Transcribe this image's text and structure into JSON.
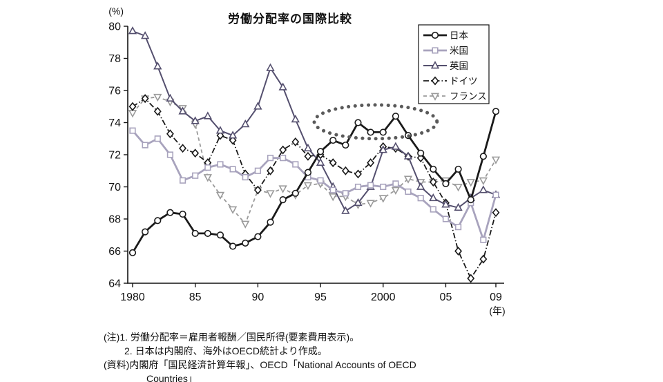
{
  "chart": {
    "title": "労働分配率の国際比較"
  },
  "notes": {
    "line1": "(注)1. 労働分配率＝雇用者報酬／国民所得(要素費用表示)。",
    "line2": "2. 日本は内閣府、海外はOECD統計より作成。",
    "line3": "(資料)内閣府「国民経済計算年報」、OECD「National Accounts of OECD",
    "line4": "Countries」"
  },
  "chart_data": {
    "type": "line",
    "title": "労働分配率の国際比較",
    "xlabel": "(年)",
    "ylabel": "(%)",
    "ylim": [
      64,
      80
    ],
    "y_ticks": [
      64,
      66,
      68,
      70,
      72,
      74,
      76,
      78,
      80
    ],
    "x": [
      1980,
      1981,
      1982,
      1983,
      1984,
      1985,
      1986,
      1987,
      1988,
      1989,
      1990,
      1991,
      1992,
      1993,
      1994,
      1995,
      1996,
      1997,
      1998,
      1999,
      2000,
      2001,
      2002,
      2003,
      2004,
      2005,
      2006,
      2007,
      2008,
      2009
    ],
    "x_ticks": [
      {
        "year": 1980,
        "label": "1980"
      },
      {
        "year": 1985,
        "label": "85"
      },
      {
        "year": 1990,
        "label": "90"
      },
      {
        "year": 1995,
        "label": "95"
      },
      {
        "year": 2000,
        "label": "2000"
      },
      {
        "year": 2005,
        "label": "05"
      },
      {
        "year": 2009,
        "label": "09"
      }
    ],
    "legend_position": "top-right",
    "series": [
      {
        "key": "japan",
        "name": "日本",
        "color": "#1a1a1a",
        "line_width": 2.8,
        "dash": "",
        "marker": "circle",
        "values": [
          65.9,
          67.2,
          67.9,
          68.4,
          68.3,
          67.1,
          67.1,
          67.0,
          66.3,
          66.5,
          66.9,
          67.8,
          69.2,
          69.6,
          70.9,
          72.2,
          72.9,
          72.6,
          74.0,
          73.4,
          73.4,
          74.4,
          73.2,
          72.1,
          71.1,
          70.2,
          71.1,
          69.2,
          71.9,
          74.7
        ]
      },
      {
        "key": "us",
        "name": "米国",
        "color": "#a8a3bd",
        "line_width": 2.8,
        "dash": "",
        "marker": "square",
        "values": [
          73.5,
          72.6,
          73.0,
          72.0,
          70.4,
          70.7,
          71.2,
          71.4,
          71.1,
          70.6,
          71.0,
          71.8,
          71.8,
          71.4,
          70.6,
          70.4,
          69.8,
          69.6,
          70.0,
          70.1,
          70.0,
          70.2,
          69.7,
          69.3,
          68.6,
          68.0,
          67.5,
          69.0,
          66.7,
          69.5
        ]
      },
      {
        "key": "uk",
        "name": "英国",
        "color": "#544f6e",
        "line_width": 2.0,
        "dash": "",
        "marker": "triangle-up",
        "values": [
          79.7,
          79.4,
          77.5,
          75.5,
          74.7,
          74.1,
          74.4,
          73.5,
          73.2,
          73.9,
          75.0,
          77.4,
          76.2,
          74.2,
          72.4,
          71.5,
          70.0,
          68.5,
          69.0,
          70.0,
          72.3,
          72.5,
          71.9,
          70.0,
          69.3,
          68.9,
          68.7,
          69.3,
          69.8,
          69.5
        ]
      },
      {
        "key": "germany",
        "name": "ドイツ",
        "color": "#1a1a1a",
        "line_width": 1.8,
        "dash": "8 3 1.5 3",
        "marker": "diamond",
        "values": [
          75.0,
          75.5,
          74.7,
          73.3,
          72.4,
          72.1,
          71.5,
          73.2,
          72.9,
          70.8,
          69.8,
          71.0,
          72.3,
          72.8,
          71.9,
          72.0,
          71.5,
          71.0,
          70.8,
          71.5,
          72.5,
          72.4,
          71.9,
          71.8,
          70.3,
          69.0,
          66.0,
          64.3,
          65.5,
          68.4
        ]
      },
      {
        "key": "france",
        "name": "フランス",
        "color": "#9a9a9a",
        "line_width": 1.8,
        "dash": "5 4",
        "marker": "triangle-down",
        "values": [
          74.6,
          75.5,
          75.6,
          75.3,
          74.9,
          73.9,
          70.6,
          69.5,
          68.6,
          67.7,
          69.8,
          69.6,
          69.9,
          69.5,
          70.1,
          70.2,
          69.4,
          69.4,
          68.9,
          69.0,
          69.3,
          69.8,
          70.5,
          70.3,
          70.3,
          70.4,
          70.0,
          70.3,
          70.4,
          71.7
        ]
      }
    ],
    "annotation": {
      "shape": "ellipse",
      "style": "dotted",
      "color": "#5a5a5a",
      "center_year": 1999.4,
      "center_value": 74.05,
      "rx_years": 4.9,
      "ry_values": 1.05
    }
  }
}
